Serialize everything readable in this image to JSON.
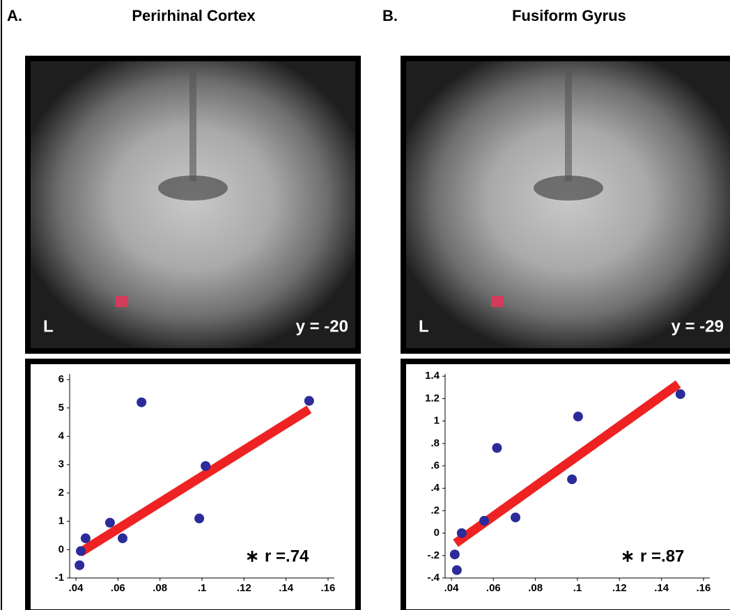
{
  "chart_data": [
    {
      "type": "scatter",
      "panel_label": "A.",
      "title": "Perirhinal Cortex",
      "image_labels": [
        "L",
        "y = -20"
      ],
      "annotations": [
        "∗",
        "r =.74"
      ],
      "x": [
        0.0417,
        0.0423,
        0.0446,
        0.0562,
        0.0622,
        0.0712,
        0.0987,
        0.1017,
        0.151
      ],
      "values": [
        -0.55,
        -0.05,
        0.4,
        0.95,
        0.4,
        5.2,
        1.1,
        2.95,
        5.25
      ],
      "color": "#2b2b9a",
      "fit": {
        "x": [
          0.042,
          0.151
        ],
        "values": [
          -0.1,
          4.95
        ],
        "color": "#ee2222"
      },
      "xlim": [
        0.037,
        0.163
      ],
      "ylim": [
        -1,
        6.2
      ],
      "xticks": [
        {
          "value": 0.04,
          "label": ".04"
        },
        {
          "value": 0.06,
          "label": ".06"
        },
        {
          "value": 0.08,
          "label": ".08"
        },
        {
          "value": 0.1,
          "label": ".1"
        },
        {
          "value": 0.12,
          "label": ".12"
        },
        {
          "value": 0.14,
          "label": ".14"
        },
        {
          "value": 0.16,
          "label": ".16"
        }
      ],
      "yticks": [
        -1,
        0,
        1,
        2,
        3,
        4,
        5,
        6
      ]
    },
    {
      "type": "scatter",
      "panel_label": "B.",
      "title": "Fusiform Gyrus",
      "image_labels": [
        "L",
        "y = -29"
      ],
      "annotations": [
        "∗",
        "r =.87"
      ],
      "x": [
        0.0416,
        0.0426,
        0.0449,
        0.0556,
        0.0617,
        0.0705,
        0.0974,
        0.1003,
        0.149
      ],
      "values": [
        -0.19,
        -0.33,
        0.0,
        0.11,
        0.76,
        0.14,
        0.48,
        1.04,
        1.24
      ],
      "color": "#2b2b9a",
      "fit": {
        "x": [
          0.042,
          0.148
        ],
        "values": [
          -0.09,
          1.33
        ],
        "color": "#ee2222"
      },
      "xlim": [
        0.037,
        0.163
      ],
      "ylim": [
        -0.4,
        1.42
      ],
      "xticks": [
        {
          "value": 0.04,
          "label": ".04"
        },
        {
          "value": 0.06,
          "label": ".06"
        },
        {
          "value": 0.08,
          "label": ".08"
        },
        {
          "value": 0.1,
          "label": ".1"
        },
        {
          "value": 0.12,
          "label": ".12"
        },
        {
          "value": 0.14,
          "label": ".14"
        },
        {
          "value": 0.16,
          "label": ".16"
        }
      ],
      "yticks": [
        {
          "value": 1.4,
          "label": "1.4"
        },
        {
          "value": 1.2,
          "label": "1.2"
        },
        1,
        {
          "value": 0.8,
          "label": ".8"
        },
        {
          "value": 0.6,
          "label": ".6"
        },
        {
          "value": 0.4,
          "label": ".4"
        },
        {
          "value": 0.2,
          "label": ".2"
        },
        0,
        {
          "value": -0.2,
          "label": "-.2"
        },
        {
          "value": -0.4,
          "label": "-.4"
        }
      ]
    }
  ]
}
